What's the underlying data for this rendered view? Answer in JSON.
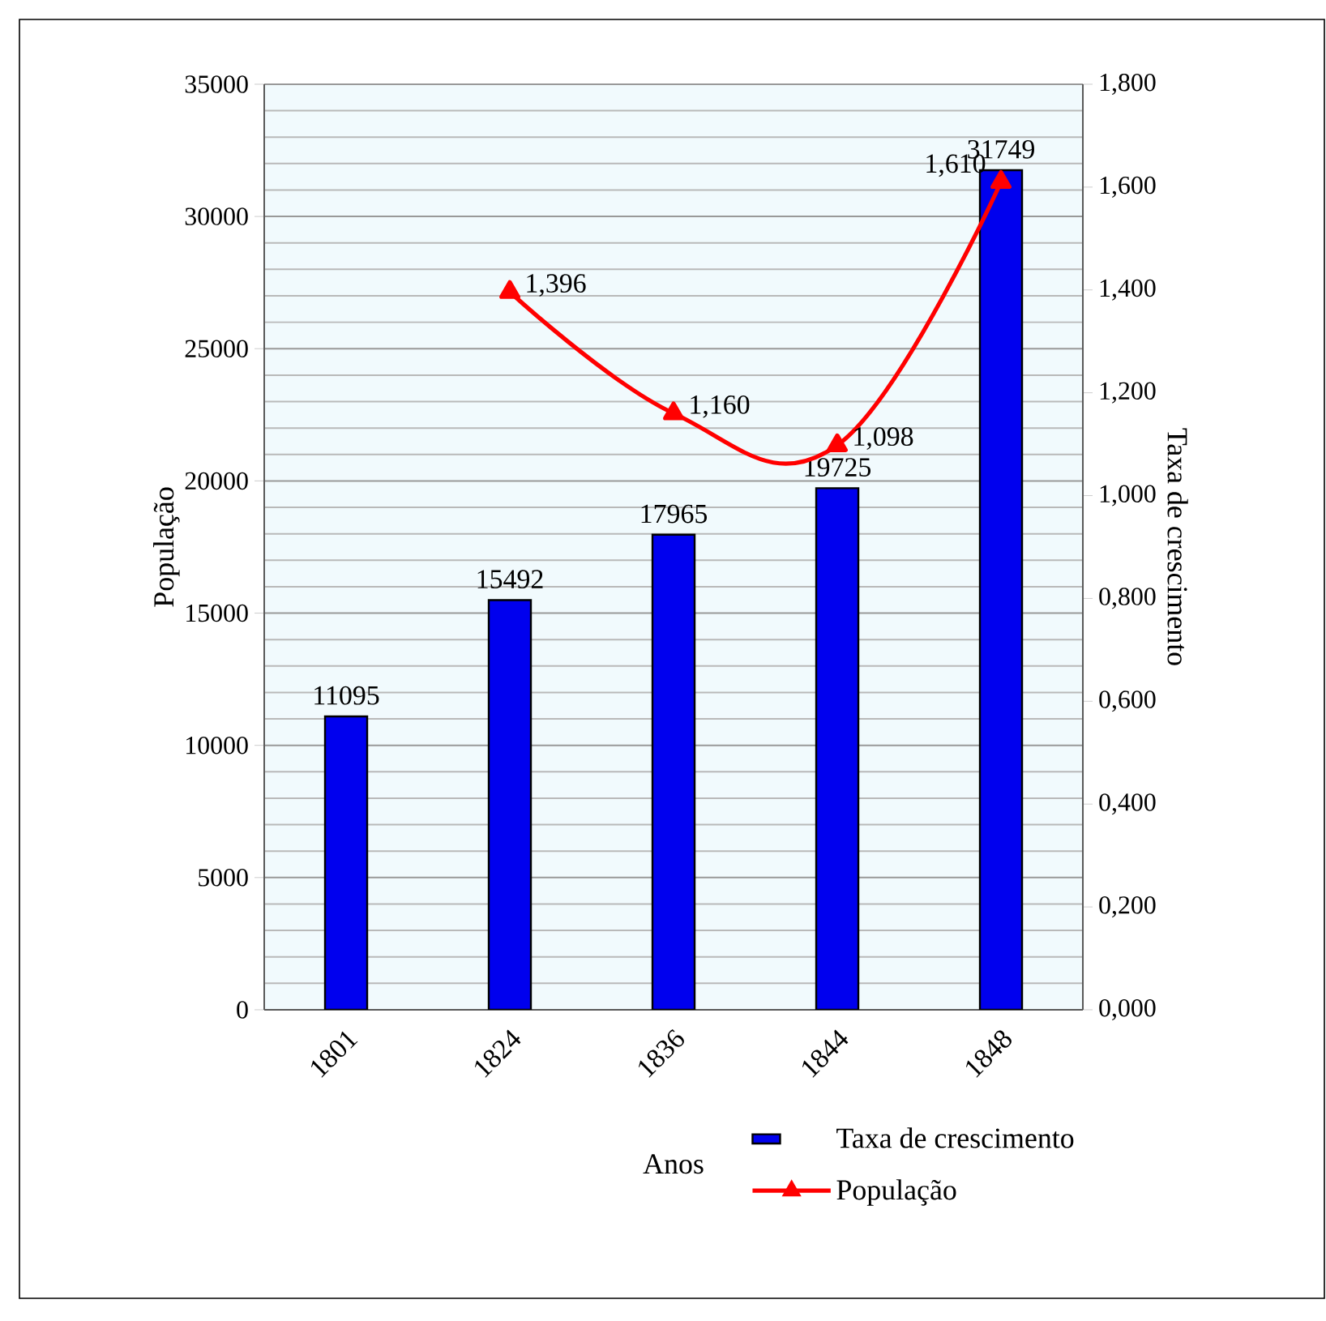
{
  "chart_data": {
    "type": "bar",
    "xlabel": "Anos",
    "ylabel": "População",
    "y2label": "Taxa de crescimento",
    "categories": [
      "1801",
      "1824",
      "1836",
      "1844",
      "1848"
    ],
    "series": [
      {
        "name": "Taxa de crescimento",
        "color": "#0000ee",
        "values": [
          11095,
          15492,
          17965,
          19725,
          31749
        ],
        "value_labels": [
          "11095",
          "15492",
          "17965",
          "19725",
          "31749"
        ]
      },
      {
        "name": "População",
        "type": "line",
        "axis": "y2",
        "color": "#ff0000",
        "marker": "triangle",
        "values": [
          null,
          1.396,
          1.16,
          1.098,
          1.61
        ],
        "value_labels": [
          null,
          "1,396",
          "1,160",
          "1,098",
          "1,610"
        ]
      }
    ],
    "ylim": [
      0,
      35000
    ],
    "yticks": [
      0,
      5000,
      10000,
      15000,
      20000,
      25000,
      30000,
      35000
    ],
    "y2lim": [
      0,
      1.8
    ],
    "y2ticks": [
      {
        "value": 0,
        "label": "0,000"
      },
      {
        "value": 0.2,
        "label": "0,200"
      },
      {
        "value": 0.4,
        "label": "0,400"
      },
      {
        "value": 0.6,
        "label": "0,600"
      },
      {
        "value": 0.8,
        "label": "0,800"
      },
      {
        "value": 1.0,
        "label": "1,000"
      },
      {
        "value": 1.2,
        "label": "1,200"
      },
      {
        "value": 1.4,
        "label": "1,400"
      },
      {
        "value": 1.6,
        "label": "1,600"
      },
      {
        "value": 1.8,
        "label": "1,800"
      }
    ],
    "grid": "y",
    "legend": "bottom right"
  }
}
